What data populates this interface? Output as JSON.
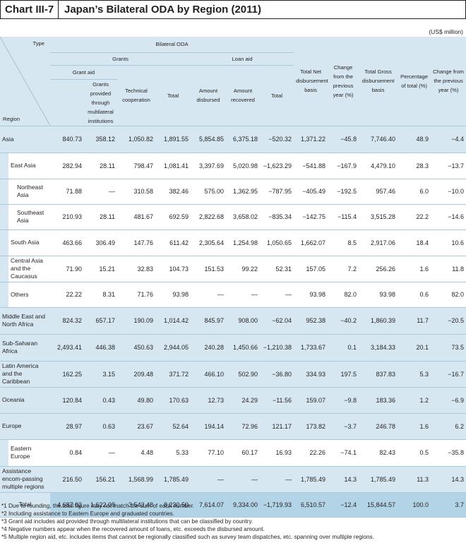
{
  "title": {
    "chart_no": "Chart III-7",
    "text": "Japan’s Bilateral ODA by Region (2011)"
  },
  "unit": "(US$ million)",
  "headers": {
    "type": "Type",
    "region": "Region",
    "bilateral": "Bilateral ODA",
    "grants": "Grants",
    "grant_aid": "Grant aid",
    "grants_multilateral": "Grants provided through multilateral institutions",
    "technical": "Technical cooperation",
    "total": "Total",
    "loan_aid": "Loan aid",
    "amount_disbursed": "Amount disbursed",
    "amount_recovered": "Amount recovered",
    "loan_total": "Total",
    "net": "Total Net disbursement basis",
    "change1": "Change from the previous year (%)",
    "gross": "Total Gross disbursement basis",
    "pct": "Percentage of total (%)",
    "change2": "Change from the previous year (%)"
  },
  "rows": [
    {
      "label": "Asia",
      "kind": "main",
      "values": [
        "840.73",
        "358.12",
        "1,050.82",
        "1,891.55",
        "5,854.85",
        "6,375.18",
        "−520.32",
        "1,371.22",
        "−45.8",
        "7,746.40",
        "48.9",
        "−4.4"
      ]
    },
    {
      "label": "East Asia",
      "kind": "sub",
      "values": [
        "282.94",
        "28.11",
        "798.47",
        "1,081.41",
        "3,397.69",
        "5,020.98",
        "−1,623.29",
        "−541.88",
        "−167.9",
        "4,479.10",
        "28.3",
        "−13.7"
      ]
    },
    {
      "label": "Northeast Asia",
      "kind": "subsub",
      "values": [
        "71.88",
        "—",
        "310.58",
        "382.46",
        "575.00",
        "1,362.95",
        "−787.95",
        "−405.49",
        "−192.5",
        "957.46",
        "6.0",
        "−10.0"
      ]
    },
    {
      "label": "Southeast Asia",
      "kind": "subsub",
      "values": [
        "210.93",
        "28.11",
        "481.67",
        "692.59",
        "2,822.68",
        "3,658.02",
        "−835.34",
        "−142.75",
        "−115.4",
        "3,515.28",
        "22.2",
        "−14.6"
      ]
    },
    {
      "label": "South Asia",
      "kind": "sub",
      "values": [
        "463.66",
        "306.49",
        "147.76",
        "611.42",
        "2,305.64",
        "1,254.98",
        "1,050.65",
        "1,662.07",
        "8.5",
        "2,917.06",
        "18.4",
        "10.6"
      ]
    },
    {
      "label": "Central Asia and the Caucasus",
      "kind": "sub",
      "values": [
        "71.90",
        "15.21",
        "32.83",
        "104.73",
        "151.53",
        "99.22",
        "52.31",
        "157.05",
        "7.2",
        "256.26",
        "1.6",
        "11.8"
      ]
    },
    {
      "label": "Others",
      "kind": "sub",
      "values": [
        "22.22",
        "8.31",
        "71.76",
        "93.98",
        "—",
        "—",
        "—",
        "93.98",
        "82.0",
        "93.98",
        "0.6",
        "82.0"
      ]
    },
    {
      "label": "Middle East and North Africa",
      "kind": "main",
      "values": [
        "824.32",
        "657.17",
        "190.09",
        "1,014.42",
        "845.97",
        "908.00",
        "−62.04",
        "952.38",
        "−40.2",
        "1,860.39",
        "11.7",
        "−20.5"
      ]
    },
    {
      "label": "Sub-Saharan Africa",
      "kind": "main",
      "values": [
        "2,493.41",
        "446.38",
        "450.63",
        "2,944.05",
        "240.28",
        "1,450.66",
        "−1,210.38",
        "1,733.67",
        "0.1",
        "3,184.33",
        "20.1",
        "73.5"
      ]
    },
    {
      "label": "Latin America and the Caribbean",
      "kind": "main",
      "values": [
        "162.25",
        "3.15",
        "209.48",
        "371.72",
        "466.10",
        "502.90",
        "−36.80",
        "334.93",
        "197.5",
        "837.83",
        "5.3",
        "−16.7"
      ]
    },
    {
      "label": "Oceania",
      "kind": "main",
      "values": [
        "120.84",
        "0.43",
        "49.80",
        "170.63",
        "12.73",
        "24.29",
        "−11.56",
        "159.07",
        "−9.8",
        "183.36",
        "1.2",
        "−6.9"
      ]
    },
    {
      "label": "Europe",
      "kind": "main",
      "values": [
        "28.97",
        "0.63",
        "23.67",
        "52.64",
        "194.14",
        "72.96",
        "121.17",
        "173.82",
        "−3.7",
        "246.78",
        "1.6",
        "6.2"
      ]
    },
    {
      "label": "Eastern Europe",
      "kind": "sub",
      "values": [
        "0.84",
        "—",
        "4.48",
        "5.33",
        "77.10",
        "60.17",
        "16.93",
        "22.26",
        "−74.1",
        "82.43",
        "0.5",
        "−35.8"
      ]
    },
    {
      "label": "Assistance encom-passing multiple regions",
      "kind": "main",
      "values": [
        "216.50",
        "156.21",
        "1,568.99",
        "1,785.49",
        "—",
        "—",
        "—",
        "1,785.49",
        "14.3",
        "1,785.49",
        "11.3",
        "14.3"
      ]
    },
    {
      "label": "Total",
      "kind": "total",
      "values": [
        "4,687.02",
        "1,622.08",
        "3,543.48",
        "8,230.50",
        "7,614.07",
        "9,334.00",
        "−1,719.93",
        "6,510.57",
        "−12.4",
        "15,844.57",
        "100.0",
        "3.7"
      ]
    }
  ],
  "notes": [
    "*1 Due to rounding, the total figure may not match the sum of each number.",
    "*2 Including assistance to Eastern Europe and graduated countries.",
    "*3 Grant aid includes aid provided through multilateral institutions that can be classified by country.",
    "*4 Negative numbers appear when the recovered amount of loans, etc. exceeds the disbursed amount.",
    "*5 Multiple region aid, etc. includes items that cannot be regionally classified such as survey team dispatches, etc. spanning over multiple regions."
  ]
}
